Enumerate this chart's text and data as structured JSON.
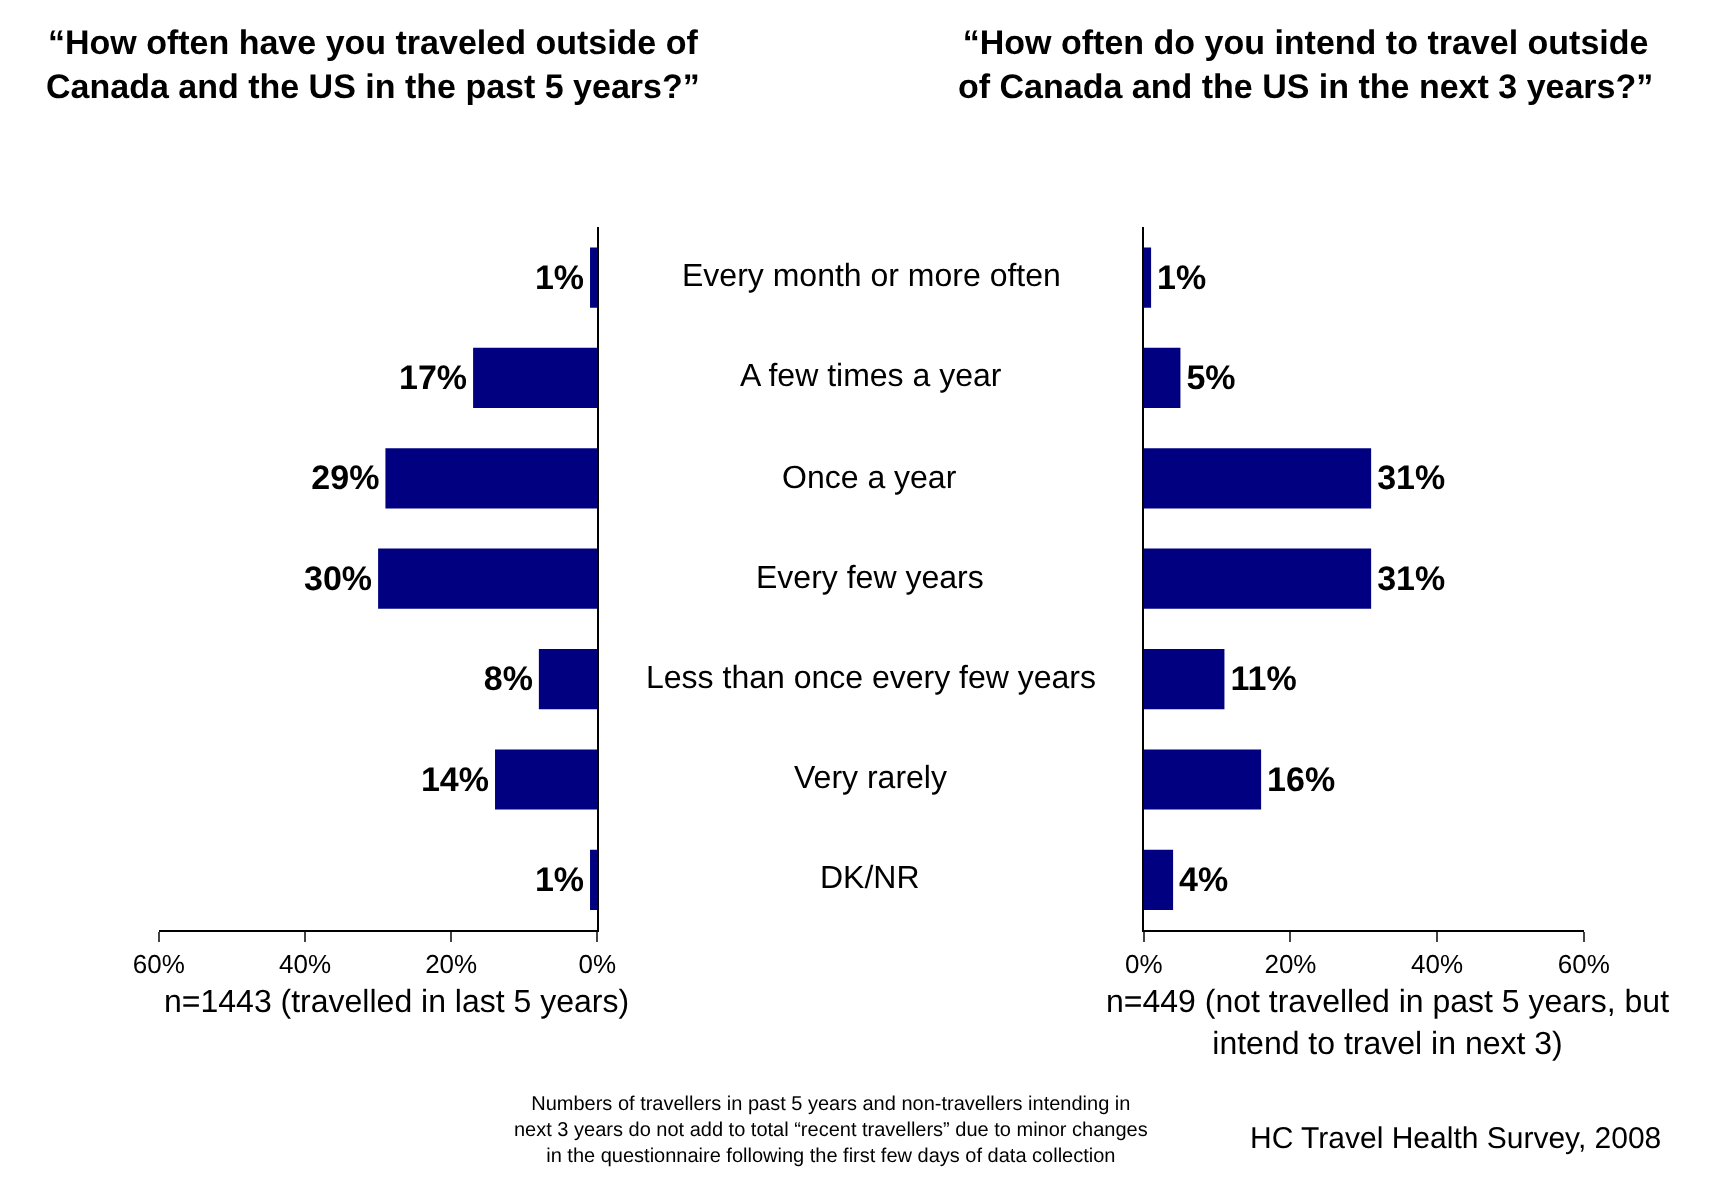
{
  "chart_data": [
    {
      "type": "bar",
      "orientation": "horizontal",
      "title": "“How often have you traveled outside of\nCanada and the US in the past 5 years?”",
      "categories": [
        "Every month or more often",
        "A few times a year",
        "Once a year",
        "Every few years",
        "Less than once every few years",
        "Very rarely",
        "DK/NR"
      ],
      "series": [
        {
          "color": "#000080",
          "values": [
            1,
            17,
            29,
            30,
            8,
            14,
            1
          ],
          "value_labels": [
            "1%",
            "17%",
            "29%",
            "30%",
            "8%",
            "14%",
            "1%"
          ]
        }
      ],
      "xlim": [
        60,
        0
      ],
      "xticks": [
        {
          "value": 60,
          "label": "60%"
        },
        {
          "value": 40,
          "label": "40%"
        },
        {
          "value": 20,
          "label": "20%"
        },
        {
          "value": 0,
          "label": "0%"
        }
      ],
      "tick_labels": "x",
      "annotations": [
        "n=1443 (travelled in last 5 years)",
        "Numbers of travellers in past 5 years and non-travellers intending in\nnext 3 years do not add to total “recent travellers” due to minor changes\nin the questionnaire following the first few days of data collection"
      ]
    },
    {
      "type": "bar",
      "orientation": "horizontal",
      "title": "“How often do you intend to travel outside\nof Canada and the US in the next 3 years?”",
      "categories": [
        null,
        null,
        null,
        null,
        null,
        null,
        null
      ],
      "series": [
        {
          "color": "#000080",
          "values": [
            1,
            5,
            31,
            31,
            11,
            16,
            4
          ],
          "value_labels": [
            "1%",
            "5%",
            "31%",
            "31%",
            "11%",
            "16%",
            "4%"
          ]
        }
      ],
      "xlim": [
        0,
        60
      ],
      "xticks": [
        {
          "value": 0,
          "label": "0%"
        },
        {
          "value": 20,
          "label": "20%"
        },
        {
          "value": 40,
          "label": "40%"
        },
        {
          "value": 60,
          "label": "60%"
        }
      ],
      "tick_labels": "x",
      "annotations": [
        "n=449 (not travelled in past 5 years, but\nintend to travel in next 3)",
        "HC Travel Health Survey, 2008"
      ]
    }
  ]
}
